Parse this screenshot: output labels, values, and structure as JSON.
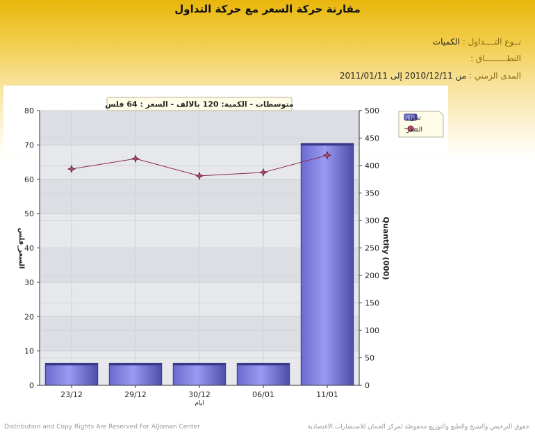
{
  "header": {
    "title": "مقارنة حركة السعر مع حركة التداول"
  },
  "info": {
    "trade_type_label": "نــوع التــــداول :",
    "trade_type_value": "الكميات",
    "scope_label": "النطـــــــــاق :",
    "scope_value": "",
    "period_label": "المدى الزمني :",
    "period_value": "من 2010/12/11 إلى 2011/01/11"
  },
  "chart_data": {
    "type": "bar",
    "subtitle": "متوسطات - الكمية: 120 بالالف  - السعر : 64 فلس",
    "categories": [
      "23/12",
      "29/12",
      "30/12",
      "06/01",
      "11/01"
    ],
    "xlabel": "ايام",
    "y_left_label": "السعر_فلس",
    "y_right_label": "Quantity (000)",
    "y_left_lim": [
      0,
      80
    ],
    "y_left_ticks": [
      0,
      10,
      20,
      30,
      40,
      50,
      60,
      70,
      80
    ],
    "y_right_lim": [
      0,
      500
    ],
    "y_right_ticks": [
      0,
      50,
      100,
      150,
      200,
      250,
      300,
      350,
      400,
      450,
      500
    ],
    "series": [
      {
        "name": "تداول",
        "type": "bar",
        "axis": "right",
        "values": [
          40,
          40,
          40,
          40,
          440
        ]
      },
      {
        "name": "السعر",
        "type": "line",
        "axis": "left",
        "values": [
          63,
          66,
          61,
          62,
          67
        ]
      }
    ],
    "legend_position": "top-right",
    "grid": true,
    "colors": {
      "bar": "#8a8ae6",
      "bar_dark": "#5a5ab8",
      "line": "#8b2545",
      "marker": "#b05070",
      "plot_bg": "#e6e8ec"
    }
  },
  "footer": {
    "left": "Distribution and Copy Rights Are Reserved For AlJoman Center",
    "right": "حقوق الترخيص والنسخ والطبع والتوزيع محفوظة لمركز الجمان للاستشارات الاقتصادية"
  }
}
